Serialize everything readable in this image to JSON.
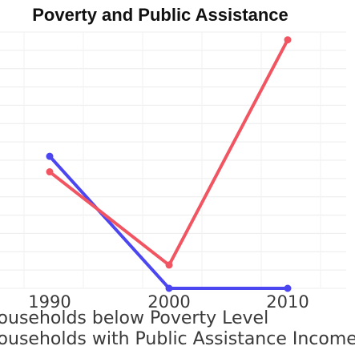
{
  "chart_data": {
    "type": "line",
    "title": "Poverty and Public Assistance",
    "xlabel": "",
    "ylabel": "",
    "x": [
      "1990",
      "2000",
      "2010"
    ],
    "series": [
      {
        "name": "Households below Poverty Level",
        "color": "#f25562",
        "values": [
          15,
          3,
          32
        ]
      },
      {
        "name": "Households with Public Assistance Income",
        "color": "#4b46f0",
        "values": [
          17,
          0,
          0
        ]
      }
    ],
    "ylim": [
      0,
      33
    ],
    "grid": true,
    "legend_position": "bottom-left"
  }
}
